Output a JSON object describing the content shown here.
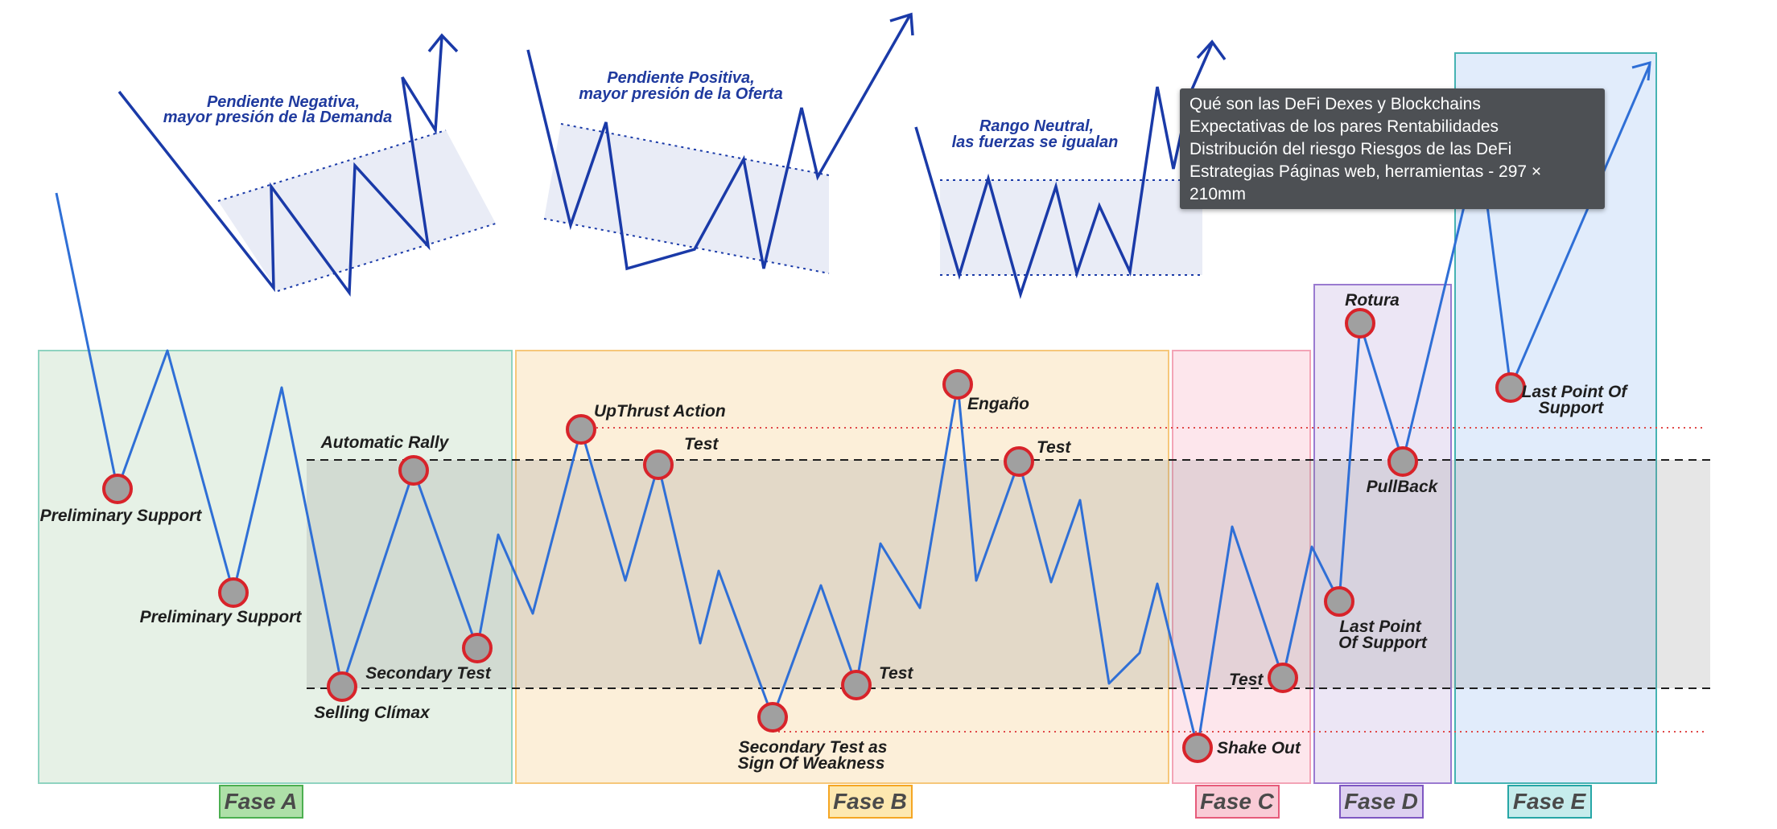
{
  "phases": [
    {
      "label": "Fase A",
      "color": "#4caf50"
    },
    {
      "label": "Fase B",
      "color": "#f5a623"
    },
    {
      "label": "Fase C",
      "color": "#e65b7a"
    },
    {
      "label": "Fase D",
      "color": "#7e57c2"
    },
    {
      "label": "Fase E",
      "color": "#26a6a6"
    }
  ],
  "examples": {
    "negative": {
      "line1": "Pendiente Negativa,",
      "line2": "mayor presión de la Demanda"
    },
    "positive": {
      "line1": "Pendiente Positiva,",
      "line2": "mayor presión de la Oferta"
    },
    "neutral": {
      "line1": "Rango Neutral,",
      "line2": "las fuerzas se igualan"
    }
  },
  "events": {
    "preliminary_support_1": "Preliminary Support",
    "preliminary_support_2": "Preliminary Support",
    "automatic_rally": "Automatic Rally",
    "secondary_test": "Secondary Test",
    "selling_climax": "Selling Clímax",
    "upthrust_action": "UpThrust Action",
    "test_b1": "Test",
    "test_b2": "Test",
    "test_b3": "Test",
    "secondary_test_sow_1": "Secondary Test as",
    "secondary_test_sow_2": "Sign Of Weakness",
    "engano": "Engaño",
    "shake_out": "Shake Out",
    "test_c": "Test",
    "rotura": "Rotura",
    "pullback": "PullBack",
    "lps_d_1": "Last Point",
    "lps_d_2": "Of Support",
    "lps_e_1": "Last Point Of",
    "lps_e_2": "Support"
  },
  "tooltip": {
    "text": "Qué son las DeFi Dexes y Blockchains\nExpectativas de los pares Rentabilidades\nDistribución del riesgo Riesgos de las DeFi\nEstrategias Páginas web, herramientas - 297 × 210mm"
  },
  "colors": {
    "price_line": "#2f6fd6",
    "example_line": "#1a3aa8",
    "marker_fill": "#a0a0a0",
    "marker_stroke": "#d8232a",
    "range_band": "#c8c8c8",
    "dotted_red": "#e04848"
  }
}
